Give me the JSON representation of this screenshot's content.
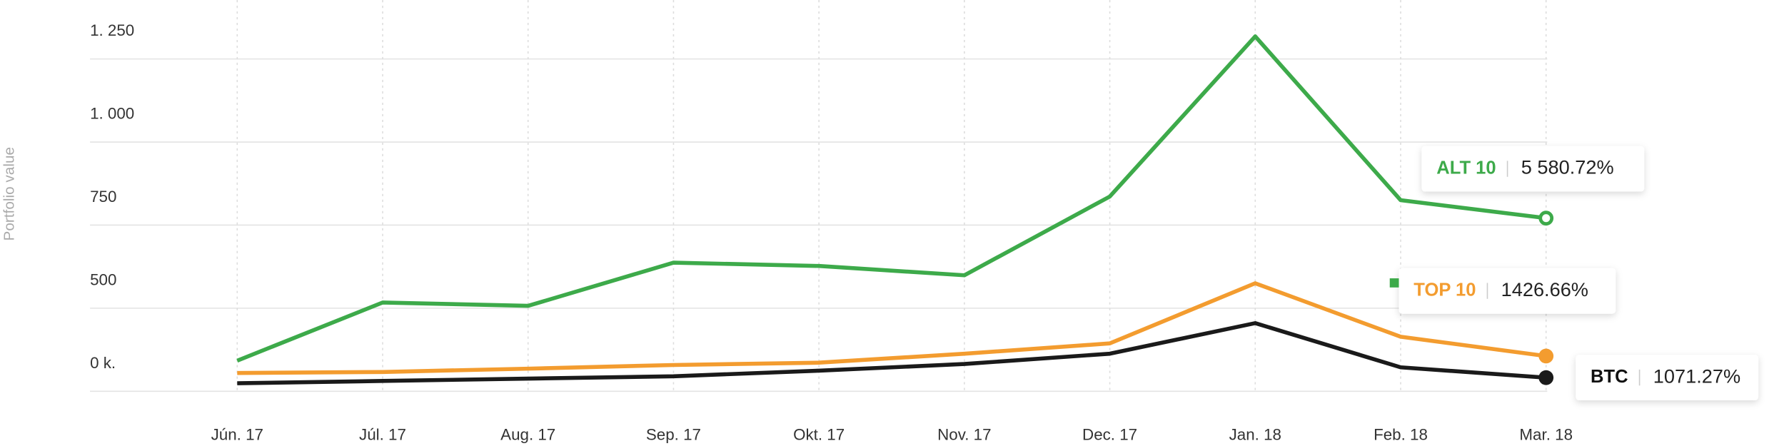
{
  "chart_data": {
    "type": "line",
    "y_label": "Portfolio value",
    "categories": [
      "Jún. 17",
      "Júl. 17",
      "Aug. 17",
      "Sep. 17",
      "Okt. 17",
      "Nov. 17",
      "Dec. 17",
      "Jan. 18",
      "Feb. 18",
      "Mar. 18"
    ],
    "series": [
      {
        "name": "ALT 10",
        "color": "#3daa4a",
        "values": [
          342,
          517,
          507,
          637,
          627,
          599,
          836,
          1318,
          825,
          771
        ],
        "end_label": "5 580.72%"
      },
      {
        "name": "TOP 10",
        "color": "#f39c2f",
        "values": [
          305,
          308,
          318,
          329,
          336,
          363,
          394,
          575,
          414,
          356
        ],
        "end_label": "1426.66%"
      },
      {
        "name": "BTC",
        "color": "#1a1a1a",
        "values": [
          274,
          281,
          288,
          295,
          312,
          332,
          363,
          455,
          322,
          291
        ],
        "end_label": "1071.27%"
      }
    ],
    "ylim": [
      250,
      1400
    ],
    "yticks": [
      {
        "value": 1250,
        "label": "1. 250"
      },
      {
        "value": 1000,
        "label": "1. 000"
      },
      750,
      500,
      {
        "value": 250,
        "label": "0 k."
      }
    ],
    "grid": true
  }
}
